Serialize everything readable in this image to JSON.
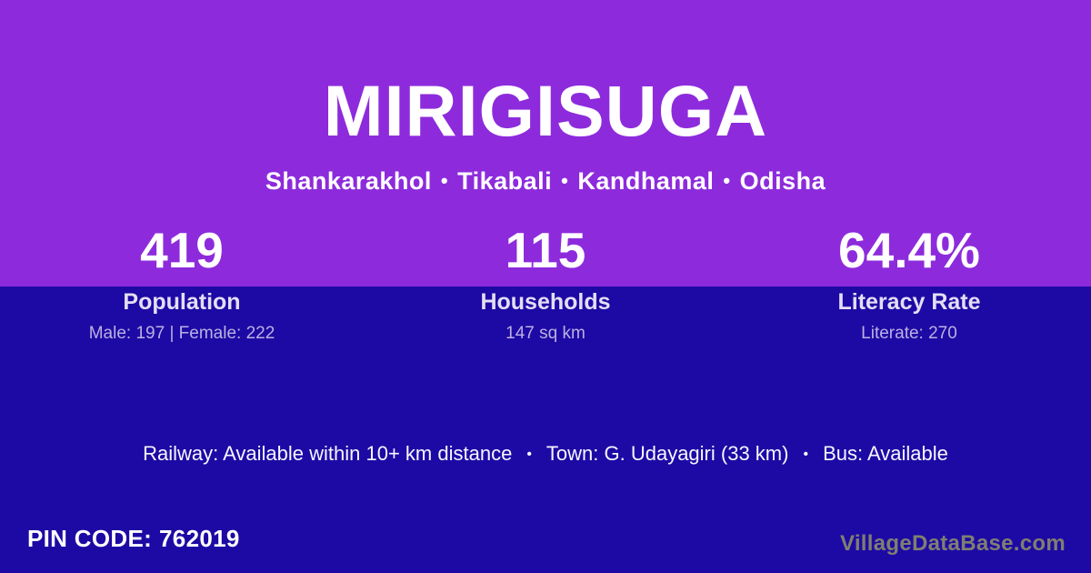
{
  "header": {
    "title": "MIRIGISUGA",
    "breadcrumb": {
      "separator": "•",
      "parts": [
        "Shankarakhol",
        "Tikabali",
        "Kandhamal",
        "Odisha"
      ]
    }
  },
  "stats": [
    {
      "value": "419",
      "label": "Population",
      "detail": "Male: 197 | Female: 222"
    },
    {
      "value": "115",
      "label": "Households",
      "detail": "147 sq km"
    },
    {
      "value": "64.4%",
      "label": "Literacy Rate",
      "detail": "Literate: 270"
    }
  ],
  "transport": {
    "separator": "•",
    "parts": [
      "Railway: Available within 10+ km distance",
      "Town: G. Udayagiri (33 km)",
      "Bus: Available"
    ]
  },
  "footer": {
    "pin_label": "PIN CODE:",
    "pin_value": "762019",
    "watermark": "VillageDataBase.com"
  },
  "colors": {
    "hero_background": "#8D2BDC",
    "lower_background": "#1D0AA4",
    "primary_text": "#FFFFFF",
    "stat_label": "#E4DEF4",
    "stat_detail": "#BCB0E2",
    "watermark": "#7F7F71"
  }
}
